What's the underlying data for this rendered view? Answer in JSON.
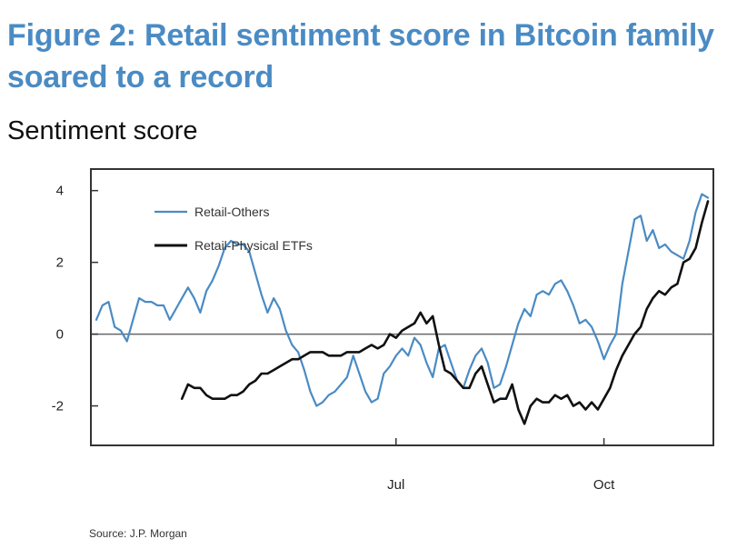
{
  "title": "Figure 2: Retail sentiment score in Bitcoin family soared to a record",
  "subtitle": "Sentiment score",
  "source": "Source: J.P. Morgan",
  "colors": {
    "title": "#4a8bc4",
    "retail_others": "#4a8bc4",
    "retail_physical_etfs": "#111111",
    "zero_line": "#666666",
    "frame": "#333333"
  },
  "chart_data": {
    "type": "line",
    "title": "Figure 2: Retail sentiment score in Bitcoin family soared to a record",
    "ylabel": "Sentiment score",
    "xlabel": "",
    "ylim": [
      -3.1,
      4.6
    ],
    "xlim": [
      0,
      100
    ],
    "yticks": [
      4,
      2,
      0,
      -2
    ],
    "ytick_labels": [
      "4",
      "2",
      "0",
      "-2"
    ],
    "xticks": [
      {
        "x": 49,
        "label": "Jul"
      },
      {
        "x": 83,
        "label": "Oct"
      }
    ],
    "grid": false,
    "zero_line": true,
    "legend": "top-left",
    "series": [
      {
        "name": "Retail-Others",
        "color": "#4a8bc4",
        "x": [
          0,
          1,
          2,
          3,
          4,
          5,
          6,
          7,
          8,
          9,
          10,
          11,
          12,
          13,
          14,
          15,
          16,
          17,
          18,
          19,
          20,
          21,
          22,
          23,
          24,
          25,
          26,
          27,
          28,
          29,
          30,
          31,
          32,
          33,
          34,
          35,
          36,
          37,
          38,
          39,
          40,
          41,
          42,
          43,
          44,
          45,
          46,
          47,
          48,
          49,
          50,
          51,
          52,
          53,
          54,
          55,
          56,
          57,
          58,
          59,
          60,
          61,
          62,
          63,
          64,
          65,
          66,
          67,
          68,
          69,
          70,
          71,
          72,
          73,
          74,
          75,
          76,
          77,
          78,
          79,
          80,
          81,
          82,
          83,
          84,
          85,
          86,
          87,
          88,
          89,
          90,
          91,
          92,
          93,
          94,
          95,
          96,
          97,
          98,
          99,
          100
        ],
        "values": [
          0.4,
          0.8,
          0.9,
          0.2,
          0.1,
          -0.2,
          0.4,
          1.0,
          0.9,
          0.9,
          0.8,
          0.8,
          0.4,
          0.7,
          1.0,
          1.3,
          1.0,
          0.6,
          1.2,
          1.5,
          1.9,
          2.4,
          2.6,
          2.5,
          2.5,
          2.3,
          1.7,
          1.1,
          0.6,
          1.0,
          0.7,
          0.1,
          -0.3,
          -0.5,
          -1.0,
          -1.6,
          -2.0,
          -1.9,
          -1.7,
          -1.6,
          -1.4,
          -1.2,
          -0.6,
          -1.1,
          -1.6,
          -1.9,
          -1.8,
          -1.1,
          -0.9,
          -0.6,
          -0.4,
          -0.6,
          -0.1,
          -0.3,
          -0.8,
          -1.2,
          -0.4,
          -0.3,
          -0.8,
          -1.3,
          -1.5,
          -1.0,
          -0.6,
          -0.4,
          -0.8,
          -1.5,
          -1.4,
          -0.9,
          -0.3,
          0.3,
          0.7,
          0.5,
          1.1,
          1.2,
          1.1,
          1.4,
          1.5,
          1.2,
          0.8,
          0.3,
          0.4,
          0.2,
          -0.2,
          -0.7,
          -0.3,
          0.0,
          1.4,
          2.3,
          3.2,
          3.3,
          2.6,
          2.9,
          2.4,
          2.5,
          2.3,
          2.2,
          2.1,
          2.6,
          3.4,
          3.9,
          3.8
        ]
      },
      {
        "name": "Retail-Physical ETFs",
        "color": "#111111",
        "x": [
          14,
          15,
          16,
          17,
          18,
          19,
          20,
          21,
          22,
          23,
          24,
          25,
          26,
          27,
          28,
          29,
          30,
          31,
          32,
          33,
          34,
          35,
          36,
          37,
          38,
          39,
          40,
          41,
          42,
          43,
          44,
          45,
          46,
          47,
          48,
          49,
          50,
          51,
          52,
          53,
          54,
          55,
          56,
          57,
          58,
          59,
          60,
          61,
          62,
          63,
          64,
          65,
          66,
          67,
          68,
          69,
          70,
          71,
          72,
          73,
          74,
          75,
          76,
          77,
          78,
          79,
          80,
          81,
          82,
          83,
          84,
          85,
          86,
          87,
          88,
          89,
          90,
          91,
          92,
          93,
          94,
          95,
          96,
          97,
          98,
          99,
          100
        ],
        "values": [
          -1.8,
          -1.4,
          -1.5,
          -1.5,
          -1.7,
          -1.8,
          -1.8,
          -1.8,
          -1.7,
          -1.7,
          -1.6,
          -1.4,
          -1.3,
          -1.1,
          -1.1,
          -1.0,
          -0.9,
          -0.8,
          -0.7,
          -0.7,
          -0.6,
          -0.5,
          -0.5,
          -0.5,
          -0.6,
          -0.6,
          -0.6,
          -0.5,
          -0.5,
          -0.5,
          -0.4,
          -0.3,
          -0.4,
          -0.3,
          0.0,
          -0.1,
          0.1,
          0.2,
          0.3,
          0.6,
          0.3,
          0.5,
          -0.3,
          -1.0,
          -1.1,
          -1.3,
          -1.5,
          -1.5,
          -1.1,
          -0.9,
          -1.4,
          -1.9,
          -1.8,
          -1.8,
          -1.4,
          -2.1,
          -2.5,
          -2.0,
          -1.8,
          -1.9,
          -1.9,
          -1.7,
          -1.8,
          -1.7,
          -2.0,
          -1.9,
          -2.1,
          -1.9,
          -2.1,
          -1.8,
          -1.5,
          -1.0,
          -0.6,
          -0.3,
          0.0,
          0.2,
          0.7,
          1.0,
          1.2,
          1.1,
          1.3,
          1.4,
          2.0,
          2.1,
          2.4,
          3.1,
          3.7
        ]
      }
    ]
  }
}
